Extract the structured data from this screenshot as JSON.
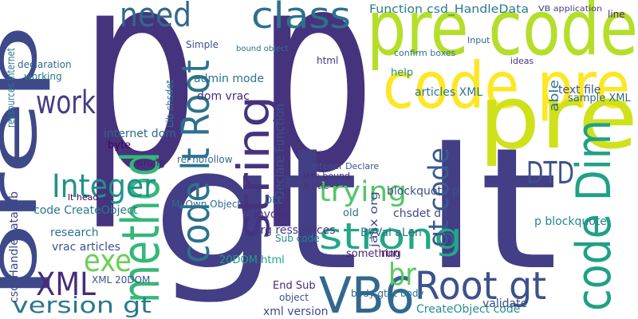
{
  "words": [
    "p p",
    "gt lt",
    "prep",
    "pre code",
    "code pre",
    "pre",
    "code Dim",
    "VB6",
    "Root gt",
    "method",
    "string",
    "code lt Root",
    "class",
    "need",
    "work",
    "Integer",
    "exe",
    "version gt",
    "XML",
    "strong",
    "trying",
    "DTD",
    "br",
    "gt code",
    "Function csd_HandleData",
    "VB application",
    "line",
    "text file",
    "admin mode",
    "dom vrac",
    "sample XML",
    "articles XML",
    "help",
    "able",
    "p blockquote",
    "blockquote p",
    "chsdet dll",
    "org ressources",
    "invoke",
    "internet dom",
    "byte",
    "code CreateObject",
    "research",
    "vrac articles",
    "CreateObject code",
    "xml version",
    "End Sub",
    "body gt",
    "lt body",
    "validate",
    "ByVal aLen",
    "run",
    "something",
    "object",
    "20DOM html",
    "MyOwn Object",
    "DLL",
    "Sub code",
    "csd_HandleData Lib",
    "XML 20DOM",
    "rel nofollow",
    "wrong",
    "late bound",
    "lt title",
    "Declare Function",
    "html",
    "working",
    "declaration",
    "old",
    "jalix org",
    "ideas",
    "ressources internet",
    "Lib chsdet",
    "Simple",
    "lt head",
    "Input",
    "confirm boxes",
    "Integer Declare",
    "bound object"
  ]
}
